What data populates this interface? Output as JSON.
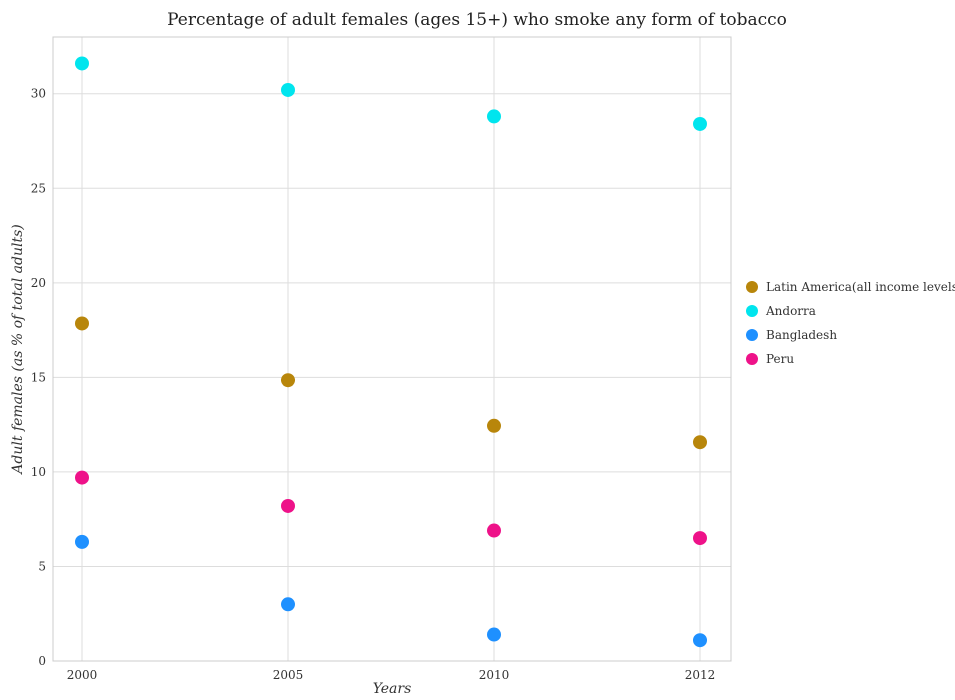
{
  "chart_data": {
    "type": "scatter",
    "title": "Percentage of adult females (ages 15+) who smoke any form of tobacco",
    "xlabel": "Years",
    "ylabel": "Adult females (as % of total adults)",
    "categories": [
      "2000",
      "2005",
      "2010",
      "2012"
    ],
    "ylim": [
      0,
      33
    ],
    "yticks": [
      0,
      5,
      10,
      15,
      20,
      25,
      30
    ],
    "grid": true,
    "legend_position": "right",
    "series": [
      {
        "name": "Latin America(all income levels)",
        "color": "#b8860b",
        "values": [
          17.85,
          14.85,
          12.44,
          11.57
        ]
      },
      {
        "name": "Andorra",
        "color": "#00e5ee",
        "values": [
          31.6,
          30.2,
          28.8,
          28.4
        ]
      },
      {
        "name": "Bangladesh",
        "color": "#1e90ff",
        "values": [
          6.3,
          3.0,
          1.4,
          1.1
        ]
      },
      {
        "name": "Peru",
        "color": "#ee1289",
        "values": [
          9.7,
          8.2,
          6.9,
          6.5
        ]
      }
    ]
  }
}
